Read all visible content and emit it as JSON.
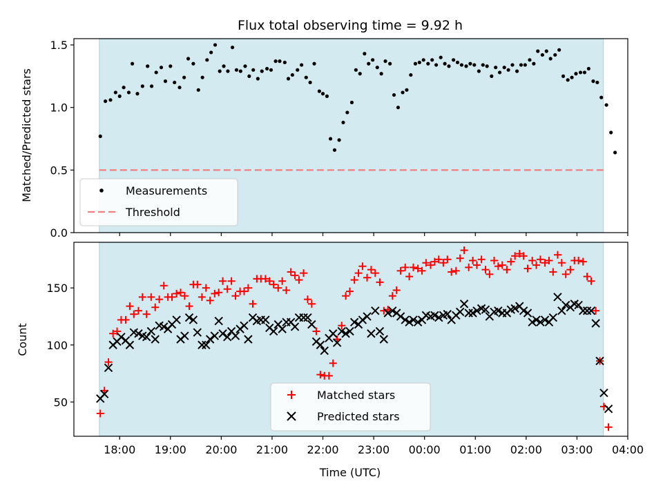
{
  "chart_data": [
    {
      "type": "scatter",
      "title": "Flux total observing time = 9.92 h",
      "xlabel": "",
      "ylabel": "Matched/Predicted stars",
      "ylim": [
        0,
        1.55
      ],
      "yticks": [
        "0.0",
        "0.5",
        "1.0",
        "1.5"
      ],
      "observing_window": [
        17.6,
        27.52
      ],
      "threshold": 0.5,
      "legend_placement": "lower-left",
      "series": [
        {
          "name": "Measurements",
          "marker": "dot",
          "color": "#000000",
          "x": [
            17.62,
            17.72,
            17.82,
            17.92,
            18.0,
            18.08,
            18.18,
            18.25,
            18.35,
            18.45,
            18.55,
            18.63,
            18.72,
            18.82,
            18.9,
            19.0,
            19.08,
            19.18,
            19.27,
            19.35,
            19.45,
            19.55,
            19.63,
            19.72,
            19.8,
            19.88,
            19.97,
            20.05,
            20.13,
            20.22,
            20.3,
            20.38,
            20.47,
            20.55,
            20.63,
            20.72,
            20.8,
            20.9,
            20.98,
            21.07,
            21.15,
            21.25,
            21.32,
            21.4,
            21.5,
            21.58,
            21.67,
            21.75,
            21.83,
            21.93,
            22.0,
            22.08,
            22.15,
            22.23,
            22.32,
            22.4,
            22.48,
            22.57,
            22.65,
            22.73,
            22.82,
            22.9,
            22.98,
            23.07,
            23.15,
            23.23,
            23.32,
            23.4,
            23.48,
            23.57,
            23.65,
            23.73,
            23.82,
            23.9,
            23.98,
            24.07,
            24.15,
            24.23,
            24.32,
            24.4,
            24.48,
            24.57,
            24.65,
            24.73,
            24.82,
            24.9,
            24.98,
            25.07,
            25.15,
            25.23,
            25.32,
            25.4,
            25.48,
            25.57,
            25.65,
            25.73,
            25.82,
            25.9,
            25.98,
            26.07,
            26.15,
            26.23,
            26.32,
            26.4,
            26.48,
            26.57,
            26.65,
            26.73,
            26.82,
            26.9,
            26.98,
            27.07,
            27.15,
            27.23,
            27.32,
            27.4,
            27.48
          ],
          "y": [
            0.77,
            1.05,
            1.06,
            1.12,
            1.09,
            1.16,
            1.12,
            1.35,
            1.11,
            1.17,
            1.33,
            1.17,
            1.28,
            1.32,
            1.21,
            1.33,
            1.2,
            1.16,
            1.24,
            1.39,
            1.35,
            1.14,
            1.24,
            1.38,
            1.44,
            1.5,
            1.29,
            1.33,
            1.29,
            1.48,
            1.3,
            1.29,
            1.33,
            1.25,
            1.3,
            1.23,
            1.29,
            1.31,
            1.3,
            1.37,
            1.37,
            1.36,
            1.23,
            1.26,
            1.3,
            1.34,
            1.24,
            1.2,
            1.35,
            1.13,
            1.11,
            1.09,
            0.75,
            0.66,
            0.74,
            0.88,
            0.96,
            1.04,
            1.3,
            1.27,
            1.43,
            1.35,
            1.38,
            1.32,
            1.27,
            1.37,
            1.35,
            1.1,
            1.0,
            1.12,
            1.14,
            1.26,
            1.35,
            1.36,
            1.38,
            1.35,
            1.38,
            1.34,
            1.4,
            1.35,
            1.33,
            1.38,
            1.36,
            1.34,
            1.33,
            1.35,
            1.34,
            1.29,
            1.34,
            1.33,
            1.25,
            1.32,
            1.28,
            1.32,
            1.3,
            1.34,
            1.29,
            1.34,
            1.34,
            1.38,
            1.35,
            1.45,
            1.42,
            1.45,
            1.39,
            1.42,
            1.46,
            1.25,
            1.22,
            1.24,
            1.27,
            1.28,
            1.28,
            1.31,
            1.21,
            1.2,
            1.08
          ],
          "x_extra": [
            27.58,
            27.67,
            27.75
          ],
          "y_extra": [
            1.02,
            0.8,
            0.64
          ]
        },
        {
          "name": "Threshold",
          "marker": "dashed-line",
          "color": "#f08080",
          "value": 0.5
        }
      ]
    },
    {
      "type": "scatter",
      "title": "",
      "xlabel": "Time (UTC)",
      "ylabel": "Count",
      "ylim": [
        20,
        190
      ],
      "yticks": [
        "50",
        "100",
        "150"
      ],
      "xticks": [
        {
          "value": 18,
          "label": "18:00"
        },
        {
          "value": 19,
          "label": "19:00"
        },
        {
          "value": 20,
          "label": "20:00"
        },
        {
          "value": 21,
          "label": "21:00"
        },
        {
          "value": 22,
          "label": "22:00"
        },
        {
          "value": 23,
          "label": "23:00"
        },
        {
          "value": 24,
          "label": "00:00"
        },
        {
          "value": 25,
          "label": "01:00"
        },
        {
          "value": 26,
          "label": "02:00"
        },
        {
          "value": 27,
          "label": "03:00"
        },
        {
          "value": 28,
          "label": "04:00"
        }
      ],
      "xlim": [
        17.1,
        28.0
      ],
      "legend_placement": "lower-center",
      "series": [
        {
          "name": "Matched stars",
          "marker": "plus",
          "color": "#ff0000",
          "x": [
            17.62,
            17.7,
            17.78,
            17.87,
            17.95,
            18.03,
            18.12,
            18.2,
            18.28,
            18.37,
            18.45,
            18.53,
            18.62,
            18.7,
            18.78,
            18.87,
            18.95,
            19.03,
            19.12,
            19.2,
            19.28,
            19.37,
            19.45,
            19.53,
            19.62,
            19.7,
            19.78,
            19.87,
            19.95,
            20.03,
            20.12,
            20.2,
            20.28,
            20.37,
            20.45,
            20.53,
            20.62,
            20.7,
            20.78,
            20.87,
            20.95,
            21.03,
            21.12,
            21.2,
            21.28,
            21.37,
            21.45,
            21.53,
            21.62,
            21.7,
            21.78,
            21.87,
            21.95,
            22.03,
            22.12,
            22.2,
            22.28,
            22.37,
            22.45,
            22.53,
            22.62,
            22.7,
            22.78,
            22.87,
            22.95,
            23.03,
            23.12,
            23.2,
            23.28,
            23.37,
            23.45,
            23.53,
            23.62,
            23.7,
            23.78,
            23.87,
            23.95,
            24.03,
            24.12,
            24.2,
            24.28,
            24.37,
            24.45,
            24.53,
            24.62,
            24.7,
            24.78,
            24.87,
            24.95,
            25.03,
            25.12,
            25.2,
            25.28,
            25.37,
            25.45,
            25.53,
            25.62,
            25.7,
            25.78,
            25.87,
            25.95,
            26.03,
            26.12,
            26.2,
            26.28,
            26.37,
            26.45,
            26.53,
            26.62,
            26.7,
            26.78,
            26.87,
            26.95,
            27.03,
            27.12,
            27.2,
            27.28,
            27.37,
            27.45,
            27.53,
            27.62
          ],
          "y": [
            40,
            60,
            85,
            110,
            112,
            122,
            122,
            134,
            127,
            130,
            142,
            127,
            142,
            133,
            140,
            152,
            142,
            142,
            145,
            146,
            143,
            134,
            153,
            153,
            142,
            150,
            139,
            145,
            146,
            156,
            149,
            156,
            143,
            147,
            147,
            150,
            136,
            158,
            158,
            158,
            156,
            153,
            150,
            156,
            148,
            164,
            161,
            157,
            163,
            140,
            136,
            112,
            74,
            73,
            73,
            84,
            105,
            117,
            143,
            147,
            157,
            163,
            169,
            159,
            166,
            163,
            155,
            130,
            131,
            143,
            148,
            165,
            168,
            160,
            168,
            167,
            165,
            172,
            170,
            173,
            175,
            172,
            175,
            164,
            165,
            176,
            183,
            168,
            174,
            170,
            175,
            166,
            162,
            174,
            169,
            170,
            166,
            173,
            178,
            180,
            178,
            167,
            174,
            170,
            175,
            172,
            174,
            164,
            179,
            172,
            162,
            166,
            174,
            174,
            173,
            160,
            156,
            130,
            86,
            46,
            28
          ],
          "x_note": ""
        },
        {
          "name": "Predicted stars",
          "marker": "x",
          "color": "#000000",
          "x": [
            17.62,
            17.7,
            17.78,
            17.87,
            17.95,
            18.03,
            18.12,
            18.2,
            18.28,
            18.37,
            18.45,
            18.53,
            18.62,
            18.7,
            18.78,
            18.87,
            18.95,
            19.03,
            19.12,
            19.2,
            19.28,
            19.37,
            19.45,
            19.53,
            19.62,
            19.7,
            19.78,
            19.87,
            19.95,
            20.03,
            20.12,
            20.2,
            20.28,
            20.37,
            20.45,
            20.53,
            20.62,
            20.7,
            20.78,
            20.87,
            20.95,
            21.03,
            21.12,
            21.2,
            21.28,
            21.37,
            21.45,
            21.53,
            21.62,
            21.7,
            21.78,
            21.87,
            21.95,
            22.03,
            22.12,
            22.2,
            22.28,
            22.37,
            22.45,
            22.53,
            22.62,
            22.7,
            22.78,
            22.87,
            22.95,
            23.03,
            23.12,
            23.2,
            23.28,
            23.37,
            23.45,
            23.53,
            23.62,
            23.7,
            23.78,
            23.87,
            23.95,
            24.03,
            24.12,
            24.2,
            24.28,
            24.37,
            24.45,
            24.53,
            24.62,
            24.7,
            24.78,
            24.87,
            24.95,
            25.03,
            25.12,
            25.2,
            25.28,
            25.37,
            25.45,
            25.53,
            25.62,
            25.7,
            25.78,
            25.87,
            25.95,
            26.03,
            26.12,
            26.2,
            26.28,
            26.37,
            26.45,
            26.53,
            26.62,
            26.7,
            26.78,
            26.87,
            26.95,
            27.03,
            27.12,
            27.2,
            27.28,
            27.37,
            27.45,
            27.53,
            27.62
          ],
          "y": [
            53,
            57,
            80,
            100,
            103,
            107,
            104,
            100,
            111,
            110,
            108,
            107,
            112,
            105,
            117,
            116,
            114,
            118,
            122,
            105,
            108,
            124,
            122,
            111,
            100,
            100,
            105,
            108,
            121,
            110,
            107,
            112,
            108,
            114,
            117,
            105,
            124,
            121,
            122,
            122,
            115,
            112,
            118,
            114,
            120,
            120,
            116,
            124,
            124,
            124,
            118,
            103,
            100,
            95,
            106,
            110,
            102,
            112,
            110,
            112,
            120,
            118,
            122,
            125,
            110,
            130,
            112,
            105,
            128,
            130,
            128,
            125,
            122,
            120,
            122,
            120,
            122,
            126,
            125,
            126,
            124,
            126,
            127,
            122,
            126,
            129,
            136,
            128,
            128,
            130,
            132,
            131,
            125,
            129,
            130,
            128,
            128,
            131,
            132,
            134,
            130,
            128,
            120,
            122,
            120,
            122,
            120,
            124,
            142,
            130,
            135,
            133,
            136,
            135,
            130,
            130,
            130,
            119,
            86,
            58,
            44
          ]
        }
      ]
    }
  ]
}
